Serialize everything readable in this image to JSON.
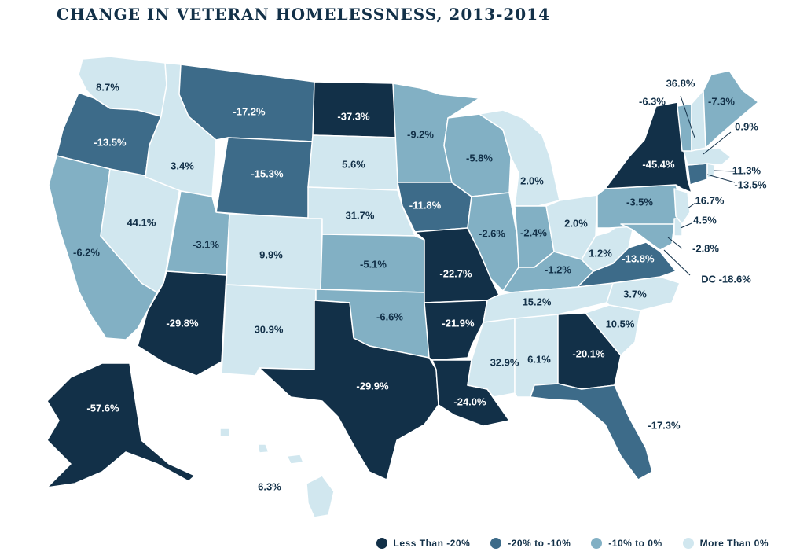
{
  "title": "CHANGE IN VETERAN HOMELESSNESS, 2013-2014",
  "colors": {
    "less_than_-20": "#123048",
    "-20_to_-10": "#3d6b89",
    "-10_to_0": "#82b0c4",
    "more_than_0": "#d1e7ef",
    "label_dark": "#ffffff",
    "label_light": "#123048"
  },
  "legend": [
    {
      "label": "Less Than -20%",
      "color": "#123048"
    },
    {
      "label": "-20% to -10%",
      "color": "#3d6b89"
    },
    {
      "label": "-10% to 0%",
      "color": "#82b0c4"
    },
    {
      "label": "More Than 0%",
      "color": "#d1e7ef"
    }
  ],
  "states": {
    "WA": "8.7%",
    "OR": "-13.5%",
    "CA": "-6.2%",
    "NV": "44.1%",
    "ID": "3.4%",
    "MT": "-17.2%",
    "WY": "-15.3%",
    "UT": "-3.1%",
    "AZ": "-29.8%",
    "CO": "9.9%",
    "NM": "30.9%",
    "ND": "-37.3%",
    "SD": "5.6%",
    "NE": "31.7%",
    "KS": "-5.1%",
    "OK": "-6.6%",
    "TX": "-29.9%",
    "MN": "-9.2%",
    "IA": "-11.8%",
    "MO": "-22.7%",
    "AR": "-21.9%",
    "LA": "-24.0%",
    "WI": "-5.8%",
    "IL": "-2.6%",
    "MI": "2.0%",
    "IN": "-2.4%",
    "OH": "2.0%",
    "KY": "-1.2%",
    "TN": "15.2%",
    "MS": "32.9%",
    "AL": "6.1%",
    "GA": "-20.1%",
    "FL": "-17.3%",
    "SC": "10.5%",
    "NC": "3.7%",
    "VA": "-13.8%",
    "WV": "1.2%",
    "PA": "-3.5%",
    "NY": "-45.4%",
    "AK": "-57.6%",
    "HI": "6.3%",
    "VT": "-6.3%",
    "NH": "36.8%",
    "ME": "-7.3%",
    "MA": "0.9%",
    "RI": "11.3%",
    "CT": "-13.5%",
    "NJ": "16.7%",
    "DE": "4.5%",
    "MD": "-2.8%",
    "DC": "DC -18.6%"
  }
}
